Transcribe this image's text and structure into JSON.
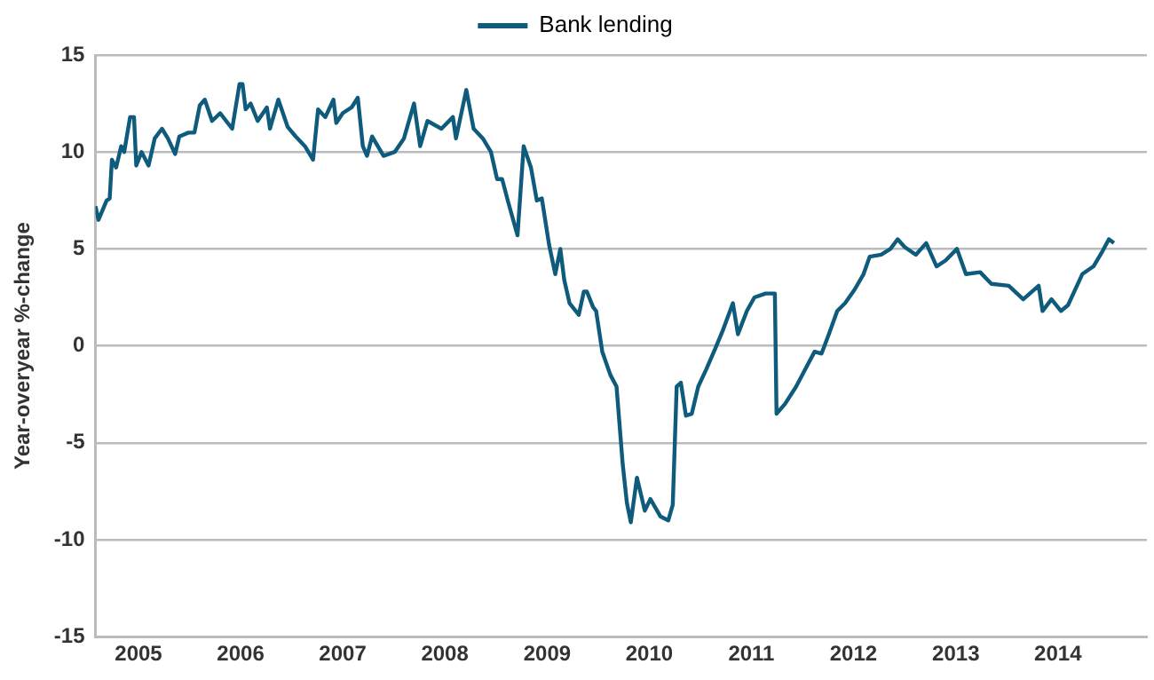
{
  "chart_data": {
    "type": "line",
    "ylabel": "Year-overyear %-change",
    "legend": "top",
    "grid": "y",
    "marker": "none",
    "line_style": "solid",
    "xlim": [
      "2004-07-31",
      "2014-11-15"
    ],
    "xticks": [
      "2005",
      "2006",
      "2007",
      "2008",
      "2009",
      "2010",
      "2011",
      "2012",
      "2013",
      "2014"
    ],
    "ylim": [
      -15,
      15
    ],
    "yticks": [
      -15,
      -10,
      -5,
      0,
      5,
      10,
      15
    ],
    "x": [
      "2004-07-31",
      "2004-08-11",
      "2004-09-09",
      "2004-09-20",
      "2004-09-28",
      "2004-10-13",
      "2004-10-31",
      "2004-11-11",
      "2004-12-02",
      "2004-12-16",
      "2004-12-24",
      "2005-01-12",
      "2005-02-06",
      "2005-02-28",
      "2005-03-26",
      "2005-04-16",
      "2005-05-12",
      "2005-05-27",
      "2005-06-29",
      "2005-07-20",
      "2005-08-08",
      "2005-08-26",
      "2005-09-21",
      "2005-10-20",
      "2005-12-02",
      "2005-12-28",
      "2006-01-08",
      "2006-01-19",
      "2006-02-06",
      "2006-03-03",
      "2006-04-05",
      "2006-04-16",
      "2006-05-16",
      "2006-06-18",
      "2006-07-17",
      "2006-08-19",
      "2006-09-17",
      "2006-10-05",
      "2006-10-31",
      "2006-11-29",
      "2006-12-09",
      "2007-01-01",
      "2007-02-02",
      "2007-02-24",
      "2007-03-14",
      "2007-03-29",
      "2007-04-16",
      "2007-05-27",
      "2007-07-06",
      "2007-08-08",
      "2007-09-13",
      "2007-10-05",
      "2007-10-31",
      "2007-12-20",
      "2008-01-30",
      "2008-02-10",
      "2008-03-18",
      "2008-04-13",
      "2008-05-16",
      "2008-06-14",
      "2008-07-06",
      "2008-07-24",
      "2008-08-15",
      "2008-09-17",
      "2008-10-09",
      "2008-11-04",
      "2008-11-25",
      "2008-12-13",
      "2009-01-08",
      "2009-01-30",
      "2009-02-17",
      "2009-03-03",
      "2009-03-22",
      "2009-04-24",
      "2009-05-12",
      "2009-05-23",
      "2009-06-14",
      "2009-06-25",
      "2009-07-17",
      "2009-08-15",
      "2009-09-06",
      "2009-09-28",
      "2009-10-13",
      "2009-10-27",
      "2009-11-18",
      "2009-12-16",
      "2010-01-05",
      "2010-02-10",
      "2010-03-10",
      "2010-03-26",
      "2010-04-09",
      "2010-04-24",
      "2010-05-12",
      "2010-06-02",
      "2010-06-25",
      "2010-07-24",
      "2010-08-26",
      "2010-09-21",
      "2010-10-27",
      "2010-11-14",
      "2010-12-16",
      "2011-01-12",
      "2011-02-21",
      "2011-03-26",
      "2011-04-01",
      "2011-05-01",
      "2011-06-10",
      "2011-07-13",
      "2011-08-15",
      "2011-09-09",
      "2011-10-05",
      "2011-11-04",
      "2011-12-02",
      "2012-01-05",
      "2012-02-06",
      "2012-02-28",
      "2012-04-09",
      "2012-05-12",
      "2012-06-07",
      "2012-07-02",
      "2012-08-11",
      "2012-09-17",
      "2012-10-24",
      "2012-11-25",
      "2013-01-05",
      "2013-02-06",
      "2013-03-29",
      "2013-05-08",
      "2013-07-09",
      "2013-08-30",
      "2013-10-24",
      "2013-11-07",
      "2013-12-09",
      "2014-01-12",
      "2014-02-06",
      "2014-03-10",
      "2014-03-29",
      "2014-05-08",
      "2014-06-10",
      "2014-07-02",
      "2014-07-20"
    ],
    "series": [
      {
        "name": "Bank lending",
        "color": "#0f5b7c",
        "values": [
          7.2,
          6.5,
          7.5,
          7.6,
          9.6,
          9.2,
          10.3,
          10.0,
          11.8,
          11.8,
          9.3,
          10.0,
          9.3,
          10.7,
          11.2,
          10.7,
          9.9,
          10.8,
          11.0,
          11.0,
          12.4,
          12.7,
          11.6,
          12.0,
          11.2,
          13.5,
          13.5,
          12.2,
          12.5,
          11.6,
          12.3,
          11.2,
          12.7,
          11.3,
          10.8,
          10.3,
          9.6,
          12.2,
          11.8,
          12.7,
          11.5,
          12.0,
          12.3,
          12.8,
          10.3,
          9.8,
          10.8,
          9.8,
          10.0,
          10.7,
          12.5,
          10.3,
          11.6,
          11.2,
          11.8,
          10.7,
          13.2,
          11.2,
          10.7,
          10.0,
          8.6,
          8.6,
          7.4,
          5.7,
          10.3,
          9.2,
          7.5,
          7.6,
          5.2,
          3.7,
          5.0,
          3.4,
          2.2,
          1.6,
          2.8,
          2.8,
          2.0,
          1.8,
          -0.3,
          -1.5,
          -2.1,
          -6.1,
          -8.1,
          -9.1,
          -6.8,
          -8.5,
          -7.9,
          -8.8,
          -9.0,
          -8.2,
          -2.1,
          -1.9,
          -3.6,
          -3.5,
          -2.1,
          -1.2,
          -0.1,
          0.8,
          2.2,
          0.6,
          1.8,
          2.5,
          2.7,
          2.7,
          -3.5,
          -3.0,
          -2.1,
          -1.2,
          -0.3,
          -0.4,
          0.6,
          1.8,
          2.2,
          2.9,
          3.7,
          4.6,
          4.7,
          5.0,
          5.5,
          5.1,
          4.7,
          5.3,
          4.1,
          4.4,
          5.0,
          3.7,
          3.8,
          3.2,
          3.1,
          2.4,
          3.1,
          1.8,
          2.4,
          1.8,
          2.1,
          3.1,
          3.7,
          4.1,
          4.9,
          5.5,
          5.3
        ]
      }
    ]
  }
}
